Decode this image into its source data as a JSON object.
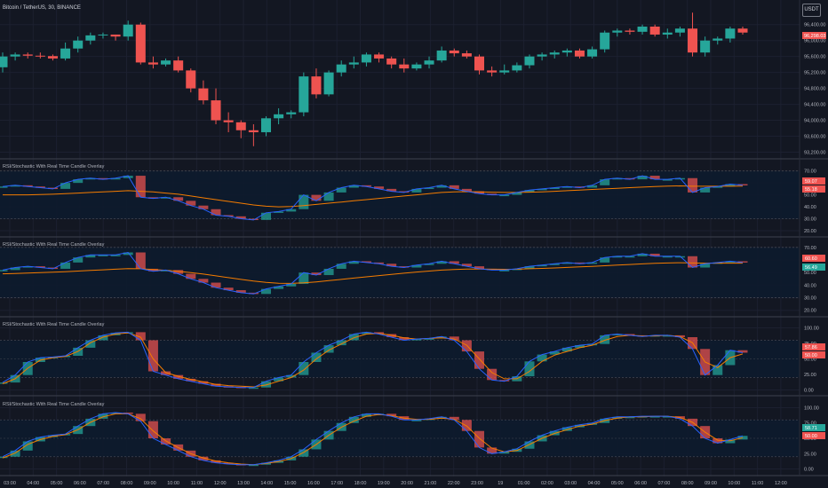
{
  "header": {
    "symbol": "Bitcoin / TetherUS, 30, BINANCE",
    "currency": "USDT"
  },
  "panes": {
    "price": {
      "price_tag": "96,298.03"
    },
    "ind1": {
      "title": "RSI/Stochastic With Real Time Candle Overlay",
      "badge_a": "59.07",
      "badge_b": "55.18"
    },
    "ind2": {
      "title": "RSI/Stochastic With Real Time Candle Overlay",
      "badge_a": "60.60",
      "badge_b": "56.49"
    },
    "ind3": {
      "title": "RSI/Stochastic With Real Time Candle Overlay",
      "badge_a": "57.86",
      "badge_b": "50.00"
    },
    "ind4": {
      "title": "RSI/Stochastic With Real Time Candle Overlay",
      "badge_a": "58.71",
      "badge_b": "50.00"
    }
  },
  "colors": {
    "up": "#26a69a",
    "down": "#ef5350",
    "rsi": "#2962ff",
    "ma": "#f57c00",
    "band": "#0d1b2e"
  },
  "chart_data": [
    {
      "type": "candlestick",
      "pane": "price",
      "y_ticks": [
        "96,400.00",
        "96,000.00",
        "95,600.00",
        "95,200.00",
        "94,800.00",
        "94,400.00",
        "94,000.00",
        "93,600.00",
        "93,200.00"
      ],
      "ylim": [
        93100,
        96750
      ],
      "candles": [
        {
          "o": 95330,
          "h": 95700,
          "l": 95200,
          "c": 95600
        },
        {
          "o": 95600,
          "h": 95700,
          "l": 95500,
          "c": 95650
        },
        {
          "o": 95650,
          "h": 95700,
          "l": 95550,
          "c": 95620
        },
        {
          "o": 95620,
          "h": 95700,
          "l": 95550,
          "c": 95610
        },
        {
          "o": 95610,
          "h": 95650,
          "l": 95500,
          "c": 95550
        },
        {
          "o": 95550,
          "h": 95950,
          "l": 95500,
          "c": 95800
        },
        {
          "o": 95800,
          "h": 96100,
          "l": 95700,
          "c": 96000
        },
        {
          "o": 96000,
          "h": 96200,
          "l": 95900,
          "c": 96130
        },
        {
          "o": 96130,
          "h": 96200,
          "l": 96050,
          "c": 96150
        },
        {
          "o": 96150,
          "h": 96150,
          "l": 96000,
          "c": 96100
        },
        {
          "o": 96100,
          "h": 96500,
          "l": 96000,
          "c": 96400
        },
        {
          "o": 96400,
          "h": 96450,
          "l": 95400,
          "c": 95450
        },
        {
          "o": 95450,
          "h": 95600,
          "l": 95300,
          "c": 95400
        },
        {
          "o": 95400,
          "h": 95550,
          "l": 95350,
          "c": 95500
        },
        {
          "o": 95500,
          "h": 95600,
          "l": 95200,
          "c": 95250
        },
        {
          "o": 95250,
          "h": 95300,
          "l": 94700,
          "c": 94800
        },
        {
          "o": 94800,
          "h": 95000,
          "l": 94400,
          "c": 94500
        },
        {
          "o": 94500,
          "h": 94800,
          "l": 93900,
          "c": 94000
        },
        {
          "o": 94000,
          "h": 94200,
          "l": 93700,
          "c": 93950
        },
        {
          "o": 93950,
          "h": 94000,
          "l": 93550,
          "c": 93750
        },
        {
          "o": 93750,
          "h": 93900,
          "l": 93350,
          "c": 93700
        },
        {
          "o": 93700,
          "h": 94100,
          "l": 93600,
          "c": 94050
        },
        {
          "o": 94050,
          "h": 94300,
          "l": 93900,
          "c": 94150
        },
        {
          "o": 94150,
          "h": 94250,
          "l": 94050,
          "c": 94200
        },
        {
          "o": 94200,
          "h": 95200,
          "l": 94100,
          "c": 95100
        },
        {
          "o": 95100,
          "h": 95300,
          "l": 94550,
          "c": 94650
        },
        {
          "o": 94650,
          "h": 95250,
          "l": 94600,
          "c": 95200
        },
        {
          "o": 95200,
          "h": 95500,
          "l": 95100,
          "c": 95400
        },
        {
          "o": 95400,
          "h": 95600,
          "l": 95300,
          "c": 95450
        },
        {
          "o": 95450,
          "h": 95700,
          "l": 95350,
          "c": 95650
        },
        {
          "o": 95650,
          "h": 95700,
          "l": 95450,
          "c": 95550
        },
        {
          "o": 95550,
          "h": 95600,
          "l": 95300,
          "c": 95400
        },
        {
          "o": 95400,
          "h": 95550,
          "l": 95200,
          "c": 95300
        },
        {
          "o": 95300,
          "h": 95450,
          "l": 95250,
          "c": 95400
        },
        {
          "o": 95400,
          "h": 95600,
          "l": 95300,
          "c": 95500
        },
        {
          "o": 95500,
          "h": 95850,
          "l": 95450,
          "c": 95750
        },
        {
          "o": 95750,
          "h": 95800,
          "l": 95600,
          "c": 95680
        },
        {
          "o": 95680,
          "h": 95750,
          "l": 95550,
          "c": 95600
        },
        {
          "o": 95600,
          "h": 95650,
          "l": 95150,
          "c": 95250
        },
        {
          "o": 95250,
          "h": 95350,
          "l": 95100,
          "c": 95200
        },
        {
          "o": 95200,
          "h": 95400,
          "l": 95150,
          "c": 95250
        },
        {
          "o": 95250,
          "h": 95450,
          "l": 95200,
          "c": 95380
        },
        {
          "o": 95380,
          "h": 95650,
          "l": 95300,
          "c": 95600
        },
        {
          "o": 95600,
          "h": 95700,
          "l": 95500,
          "c": 95650
        },
        {
          "o": 95650,
          "h": 95750,
          "l": 95550,
          "c": 95700
        },
        {
          "o": 95700,
          "h": 95800,
          "l": 95600,
          "c": 95750
        },
        {
          "o": 95750,
          "h": 95800,
          "l": 95550,
          "c": 95600
        },
        {
          "o": 95600,
          "h": 95850,
          "l": 95550,
          "c": 95780
        },
        {
          "o": 95780,
          "h": 96250,
          "l": 95700,
          "c": 96200
        },
        {
          "o": 96200,
          "h": 96300,
          "l": 96100,
          "c": 96250
        },
        {
          "o": 96250,
          "h": 96300,
          "l": 96150,
          "c": 96220
        },
        {
          "o": 96220,
          "h": 96400,
          "l": 96150,
          "c": 96350
        },
        {
          "o": 96350,
          "h": 96400,
          "l": 96100,
          "c": 96150
        },
        {
          "o": 96150,
          "h": 96300,
          "l": 96050,
          "c": 96200
        },
        {
          "o": 96200,
          "h": 96350,
          "l": 96100,
          "c": 96300
        },
        {
          "o": 96300,
          "h": 96700,
          "l": 95600,
          "c": 95700
        },
        {
          "o": 95700,
          "h": 96100,
          "l": 95600,
          "c": 96000
        },
        {
          "o": 96000,
          "h": 96100,
          "l": 95900,
          "c": 96050
        },
        {
          "o": 96050,
          "h": 96350,
          "l": 95950,
          "c": 96300
        },
        {
          "o": 96300,
          "h": 96350,
          "l": 96150,
          "c": 96200
        }
      ]
    },
    {
      "type": "rsi_candle_overlay",
      "pane": "ind1",
      "y_ticks": [
        "70.00",
        "60.00",
        "50.00",
        "40.00",
        "30.00",
        "20.00"
      ],
      "ylim": [
        17,
        72
      ],
      "band": [
        30,
        70
      ],
      "values": [
        57,
        58,
        57,
        56,
        55,
        60,
        63,
        64,
        63,
        64,
        66,
        48,
        47,
        48,
        45,
        41,
        38,
        33,
        32,
        30,
        29,
        35,
        36,
        38,
        50,
        45,
        52,
        56,
        58,
        57,
        55,
        53,
        52,
        55,
        56,
        58,
        55,
        53,
        51,
        50,
        50,
        52,
        54,
        55,
        56,
        57,
        56,
        58,
        63,
        64,
        63,
        66,
        63,
        63,
        64,
        52,
        56,
        57,
        59,
        58
      ],
      "ma": [
        50,
        50,
        50,
        50.2,
        50.5,
        51,
        51.5,
        52,
        52.5,
        53,
        53.5,
        53,
        52.5,
        51.5,
        50.5,
        49,
        47.5,
        46,
        44.5,
        43,
        41.5,
        40.5,
        40,
        40.3,
        41,
        42,
        43,
        44,
        45,
        46,
        47,
        48,
        49,
        50,
        51,
        52,
        52.5,
        52.7,
        52.5,
        52.2,
        52,
        52,
        52.2,
        52.5,
        53,
        53.5,
        54,
        54.5,
        55,
        55.5,
        56,
        56.5,
        57,
        57.3,
        57.5,
        57.2,
        57.2,
        57.2,
        57.2,
        57.3
      ]
    },
    {
      "type": "rsi_candle_overlay",
      "pane": "ind2",
      "y_ticks": [
        "70.00",
        "60.00",
        "50.00",
        "40.00",
        "30.00",
        "20.00"
      ],
      "ylim": [
        17,
        72
      ],
      "band": [
        30,
        70
      ],
      "values": [
        52,
        54,
        55,
        54,
        53,
        58,
        62,
        64,
        64,
        64,
        66,
        53,
        51,
        52,
        49,
        45,
        42,
        38,
        36,
        34,
        33,
        37,
        39,
        41,
        50,
        48,
        53,
        57,
        59,
        58,
        57,
        55,
        54,
        56,
        57,
        59,
        57,
        55,
        53,
        52,
        52,
        53,
        55,
        56,
        57,
        58,
        57,
        58,
        62,
        63,
        63,
        65,
        63,
        63,
        63,
        54,
        57,
        58,
        59,
        58
      ],
      "ma": [
        49,
        49.3,
        49.6,
        50,
        50.3,
        50.7,
        51.2,
        51.7,
        52.2,
        52.7,
        53.2,
        53,
        52.5,
        51.8,
        51,
        50,
        48.8,
        47.4,
        46,
        44.6,
        43.2,
        42.2,
        41.5,
        41.4,
        41.8,
        42.6,
        43.6,
        44.6,
        45.6,
        46.6,
        47.6,
        48.6,
        49.5,
        50.4,
        51.2,
        52,
        52.5,
        52.8,
        52.8,
        52.7,
        52.6,
        52.7,
        53,
        53.3,
        53.7,
        54.1,
        54.5,
        54.9,
        55.4,
        55.9,
        56.4,
        56.9,
        57.3,
        57.6,
        57.8,
        57.6,
        57.5,
        57.5,
        57.5,
        57.5
      ]
    },
    {
      "type": "stochastic_candle_overlay",
      "pane": "ind3",
      "y_ticks": [
        "100.00",
        "75.00",
        "50.00",
        "25.00",
        "0.00"
      ],
      "ylim": [
        -5,
        105
      ],
      "band": [
        20,
        80
      ],
      "values": [
        12,
        24,
        45,
        52,
        53,
        55,
        68,
        80,
        88,
        92,
        93,
        80,
        30,
        24,
        18,
        14,
        10,
        6,
        5,
        4,
        4,
        14,
        20,
        24,
        45,
        60,
        72,
        80,
        90,
        93,
        90,
        85,
        80,
        82,
        83,
        86,
        80,
        62,
        34,
        16,
        14,
        22,
        46,
        57,
        62,
        68,
        72,
        74,
        88,
        90,
        88,
        86,
        88,
        88,
        85,
        66,
        24,
        40,
        64,
        60
      ],
      "ma": [
        10,
        18,
        35,
        48,
        52,
        54,
        62,
        76,
        85,
        90,
        92,
        85,
        50,
        28,
        22,
        17,
        13,
        9,
        7,
        6,
        5,
        8,
        14,
        20,
        32,
        50,
        64,
        74,
        84,
        90,
        91,
        88,
        84,
        82,
        83,
        84,
        82,
        72,
        50,
        28,
        18,
        18,
        30,
        46,
        56,
        62,
        68,
        72,
        80,
        86,
        88,
        87,
        87,
        88,
        86,
        76,
        45,
        36,
        52,
        58
      ]
    },
    {
      "type": "stochastic_candle_overlay",
      "pane": "ind4",
      "y_ticks": [
        "100.00",
        "75.00",
        "50.00",
        "25.00",
        "0.00"
      ],
      "ylim": [
        -5,
        105
      ],
      "band": [
        20,
        80
      ],
      "values": [
        20,
        30,
        45,
        52,
        55,
        57,
        70,
        82,
        90,
        92,
        90,
        78,
        50,
        40,
        30,
        20,
        14,
        10,
        8,
        7,
        7,
        10,
        14,
        20,
        32,
        48,
        62,
        75,
        85,
        90,
        90,
        86,
        80,
        80,
        82,
        85,
        80,
        62,
        35,
        25,
        28,
        33,
        45,
        55,
        62,
        68,
        72,
        75,
        82,
        85,
        85,
        86,
        86,
        86,
        82,
        70,
        50,
        42,
        48,
        54
      ],
      "ma": [
        18,
        26,
        40,
        48,
        53,
        56,
        64,
        76,
        85,
        90,
        90,
        82,
        62,
        46,
        35,
        25,
        18,
        13,
        10,
        8,
        7,
        9,
        12,
        17,
        27,
        40,
        55,
        68,
        78,
        86,
        89,
        87,
        83,
        81,
        81,
        83,
        81,
        70,
        50,
        34,
        28,
        30,
        40,
        50,
        58,
        64,
        70,
        73,
        79,
        83,
        85,
        85,
        86,
        86,
        84,
        76,
        60,
        47,
        46,
        51
      ]
    }
  ],
  "x_axis": {
    "labels": [
      "03:00",
      "04:00",
      "05:00",
      "06:00",
      "07:00",
      "08:00",
      "09:00",
      "10:00",
      "11:00",
      "12:00",
      "13:00",
      "14:00",
      "15:00",
      "16:00",
      "17:00",
      "18:00",
      "19:00",
      "20:00",
      "21:00",
      "22:00",
      "23:00",
      "19",
      "01:00",
      "02:00",
      "03:00",
      "04:00",
      "05:00",
      "06:00",
      "07:00",
      "08:00",
      "09:00",
      "10:00",
      "11:00",
      "12:00"
    ]
  }
}
